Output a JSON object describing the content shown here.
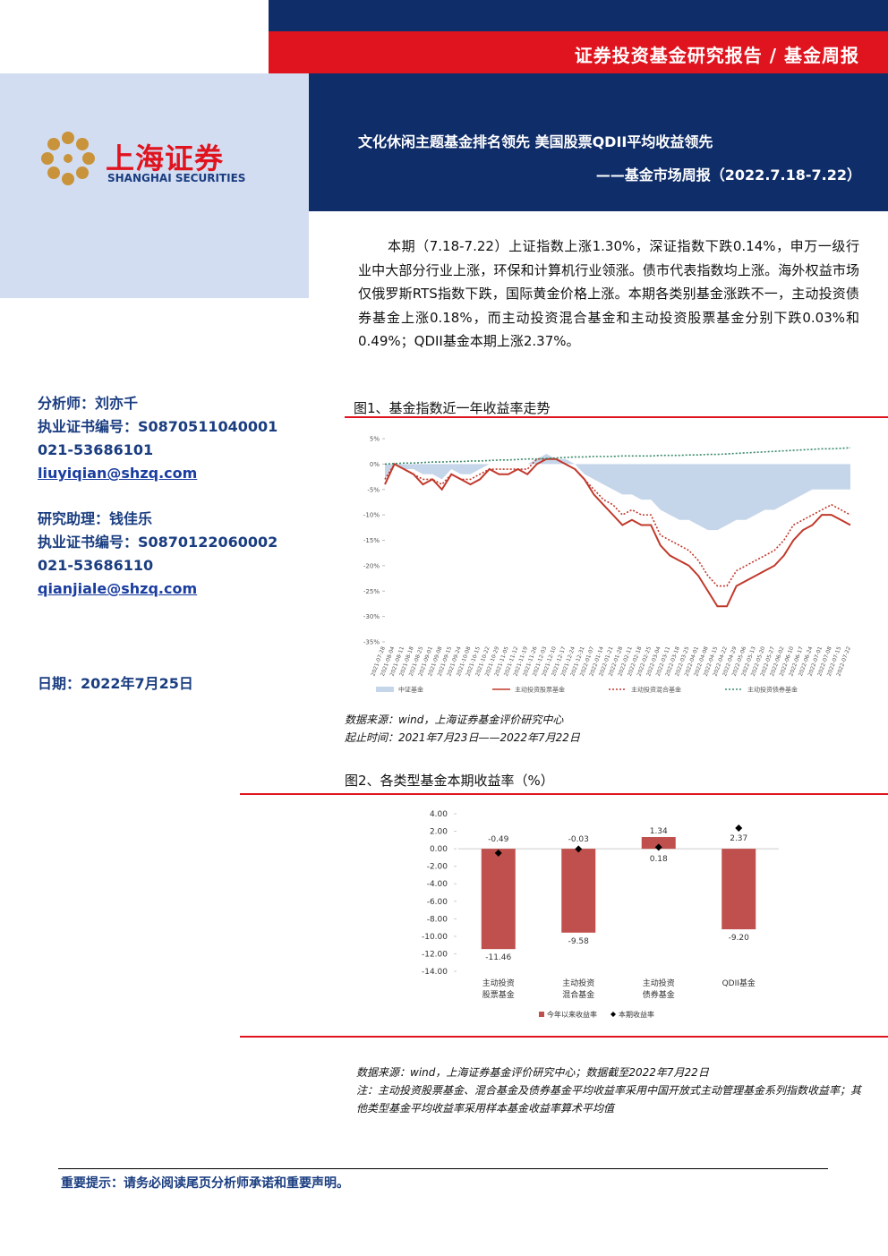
{
  "header": {
    "category": "证券投资基金研究报告 / 基金周报",
    "title": "文化休闲主题基金排名领先 美国股票QDII平均收益领先",
    "subtitle": "——基金市场周报（2022.7.18-7.22）"
  },
  "logo": {
    "name": "上海证券",
    "english": "SHANGHAI SECURITIES"
  },
  "summary": "本期（7.18-7.22）上证指数上涨1.30%，深证指数下跌0.14%，申万一级行业中大部分行业上涨，环保和计算机行业领涨。债市代表指数均上涨。海外权益市场仅俄罗斯RTS指数下跌，国际黄金价格上涨。本期各类别基金涨跌不一，主动投资债券基金上涨0.18%，而主动投资混合基金和主动投资股票基金分别下跌0.03%和0.49%；QDII基金本期上涨2.37%。",
  "analysts": [
    {
      "role": "分析师：刘亦千",
      "license": "执业证书编号：S0870511040001",
      "phone": "021-53686101",
      "email": "liuyiqian@shzq.com"
    },
    {
      "role": "研究助理：钱佳乐",
      "license": "执业证书编号：S0870122060002",
      "phone": "021-53686110",
      "email": "qianjiale@shzq.com"
    }
  ],
  "date": "日期：2022年7月25日",
  "figures": [
    {
      "caption": "图1、基金指数近一年收益率走势",
      "chart_data": {
        "type": "line",
        "legend": "bottom",
        "categories": [
          "2021-07-28",
          "2021-08-04",
          "2021-08-11",
          "2021-08-18",
          "2021-08-25",
          "2021-09-01",
          "2021-09-08",
          "2021-09-15",
          "2021-09-24",
          "2021-10-08",
          "2021-10-15",
          "2021-10-22",
          "2021-10-29",
          "2021-11-05",
          "2021-11-12",
          "2021-11-19",
          "2021-11-26",
          "2021-12-03",
          "2021-12-10",
          "2021-12-17",
          "2021-12-24",
          "2021-12-31",
          "2022-01-07",
          "2022-01-14",
          "2022-01-21",
          "2022-01-28",
          "2022-02-11",
          "2022-02-18",
          "2022-02-25",
          "2022-03-04",
          "2022-03-11",
          "2022-03-18",
          "2022-03-25",
          "2022-04-01",
          "2022-04-08",
          "2022-04-15",
          "2022-04-22",
          "2022-04-29",
          "2022-05-06",
          "2022-05-13",
          "2022-05-20",
          "2022-05-27",
          "2022-06-02",
          "2022-06-10",
          "2022-06-17",
          "2022-06-24",
          "2022-07-01",
          "2022-07-08",
          "2022-07-15",
          "2022-07-22"
        ],
        "series": [
          {
            "name": "中证基金",
            "color": "#c6d6ea",
            "style": "area",
            "values": [
              -3,
              0,
              -1,
              -1,
              -2,
              -2,
              -3,
              -1,
              -2,
              -2,
              -1,
              0,
              0,
              0,
              0,
              0,
              1,
              2,
              1,
              1,
              0,
              -2,
              -3,
              -4,
              -5,
              -6,
              -6,
              -7,
              -7,
              -9,
              -10,
              -11,
              -11,
              -12,
              -13,
              -13,
              -12,
              -11,
              -11,
              -10,
              -9,
              -9,
              -8,
              -7,
              -6,
              -5,
              -5,
              -5,
              -5,
              -5
            ]
          },
          {
            "name": "主动投资股票基金",
            "color": "#c0392b",
            "style": "solid",
            "values": [
              -4,
              0,
              -1,
              -2,
              -4,
              -3,
              -5,
              -2,
              -3,
              -4,
              -3,
              -1,
              -2,
              -2,
              -1,
              -2,
              0,
              1,
              1,
              0,
              -1,
              -3,
              -6,
              -8,
              -10,
              -12,
              -11,
              -12,
              -12,
              -16,
              -18,
              -19,
              -20,
              -22,
              -25,
              -28,
              -28,
              -24,
              -23,
              -22,
              -21,
              -20,
              -18,
              -15,
              -13,
              -12,
              -10,
              -10,
              -11,
              -12
            ]
          },
          {
            "name": "主动投资混合基金",
            "color": "#c0392b",
            "style": "dotted",
            "values": [
              -3,
              0,
              -1,
              -2,
              -3,
              -3,
              -4,
              -2,
              -3,
              -3,
              -2,
              -1,
              -1,
              -1,
              -1,
              -1,
              1,
              1,
              1,
              0,
              -1,
              -3,
              -5,
              -7,
              -8,
              -10,
              -9,
              -10,
              -10,
              -14,
              -15,
              -16,
              -17,
              -19,
              -22,
              -24,
              -24,
              -21,
              -20,
              -19,
              -18,
              -17,
              -15,
              -12,
              -11,
              -10,
              -9,
              -8,
              -9,
              -10
            ]
          },
          {
            "name": "主动投资债券基金",
            "color": "#3a8a6a",
            "style": "dotted",
            "values": [
              0,
              0.1,
              0.2,
              0.2,
              0.3,
              0.4,
              0.4,
              0.5,
              0.5,
              0.6,
              0.6,
              0.7,
              0.8,
              0.8,
              0.9,
              1.0,
              1.0,
              1.1,
              1.2,
              1.3,
              1.4,
              1.4,
              1.5,
              1.5,
              1.5,
              1.6,
              1.6,
              1.6,
              1.6,
              1.7,
              1.7,
              1.7,
              1.8,
              1.8,
              1.9,
              1.9,
              2.0,
              2.1,
              2.2,
              2.3,
              2.4,
              2.5,
              2.6,
              2.7,
              2.8,
              2.9,
              3.0,
              3.0,
              3.1,
              3.2
            ]
          }
        ],
        "ylim": [
          -35,
          5
        ],
        "yticks": [
          {
            "value": 5,
            "label": "5%"
          },
          {
            "value": 0,
            "label": "0%"
          },
          {
            "value": -5,
            "label": "-5%"
          },
          {
            "value": -10,
            "label": "-10%"
          },
          {
            "value": -15,
            "label": "-15%"
          },
          {
            "value": -20,
            "label": "-20%"
          },
          {
            "value": -25,
            "label": "-25%"
          },
          {
            "value": -30,
            "label": "-30%"
          },
          {
            "value": -35,
            "label": "-35%"
          }
        ]
      },
      "notes": [
        "数据来源：wind，上海证券基金评价研究中心",
        "起止时间：2021年7月23日——2022年7月22日"
      ]
    },
    {
      "caption": "图2、各类型基金本期收益率（%）",
      "chart_data": {
        "type": "bar",
        "legend": "bottom",
        "categories": [
          [
            "主动投资",
            "股票基金"
          ],
          [
            "主动投资",
            "混合基金"
          ],
          [
            "主动投资",
            "债券基金"
          ],
          [
            "QDII基金"
          ]
        ],
        "series": [
          {
            "name": "今年以来收益率",
            "color": "#c0504d",
            "values": [
              -11.46,
              -9.58,
              1.34,
              -9.2
            ],
            "value_labels": [
              "-11.46",
              "-9.58",
              "1.34",
              "-9.20"
            ]
          },
          {
            "name": "本期收益率",
            "color": "#000000",
            "marker": "diamond",
            "values": [
              -0.49,
              -0.03,
              0.18,
              2.37
            ]
          }
        ],
        "ylim": [
          -14,
          4
        ],
        "yticks": [
          {
            "value": 4,
            "label": "4.00"
          },
          {
            "value": 2,
            "label": "2.00"
          },
          {
            "value": 0,
            "label": "0.00"
          },
          {
            "value": -2,
            "label": "-2.00"
          },
          {
            "value": -4,
            "label": "-4.00"
          },
          {
            "value": -6,
            "label": "-6.00"
          },
          {
            "value": -8,
            "label": "-8.00"
          },
          {
            "value": -10,
            "label": "-10.00"
          },
          {
            "value": -12,
            "label": "-12.00"
          },
          {
            "value": -14,
            "label": "-14.00"
          }
        ]
      },
      "notes": [
        "数据来源：wind，上海证券基金评价研究中心；数据截至2022年7月22日",
        "注：主动投资股票基金、混合基金及债券基金平均收益率采用中国开放式主动管理基金系列指数收益率；其他类型基金平均收益率采用样本基金收益率算术平均值"
      ]
    }
  ],
  "footer": "重要提示：请务必阅读尾页分析师承诺和重要声明。"
}
